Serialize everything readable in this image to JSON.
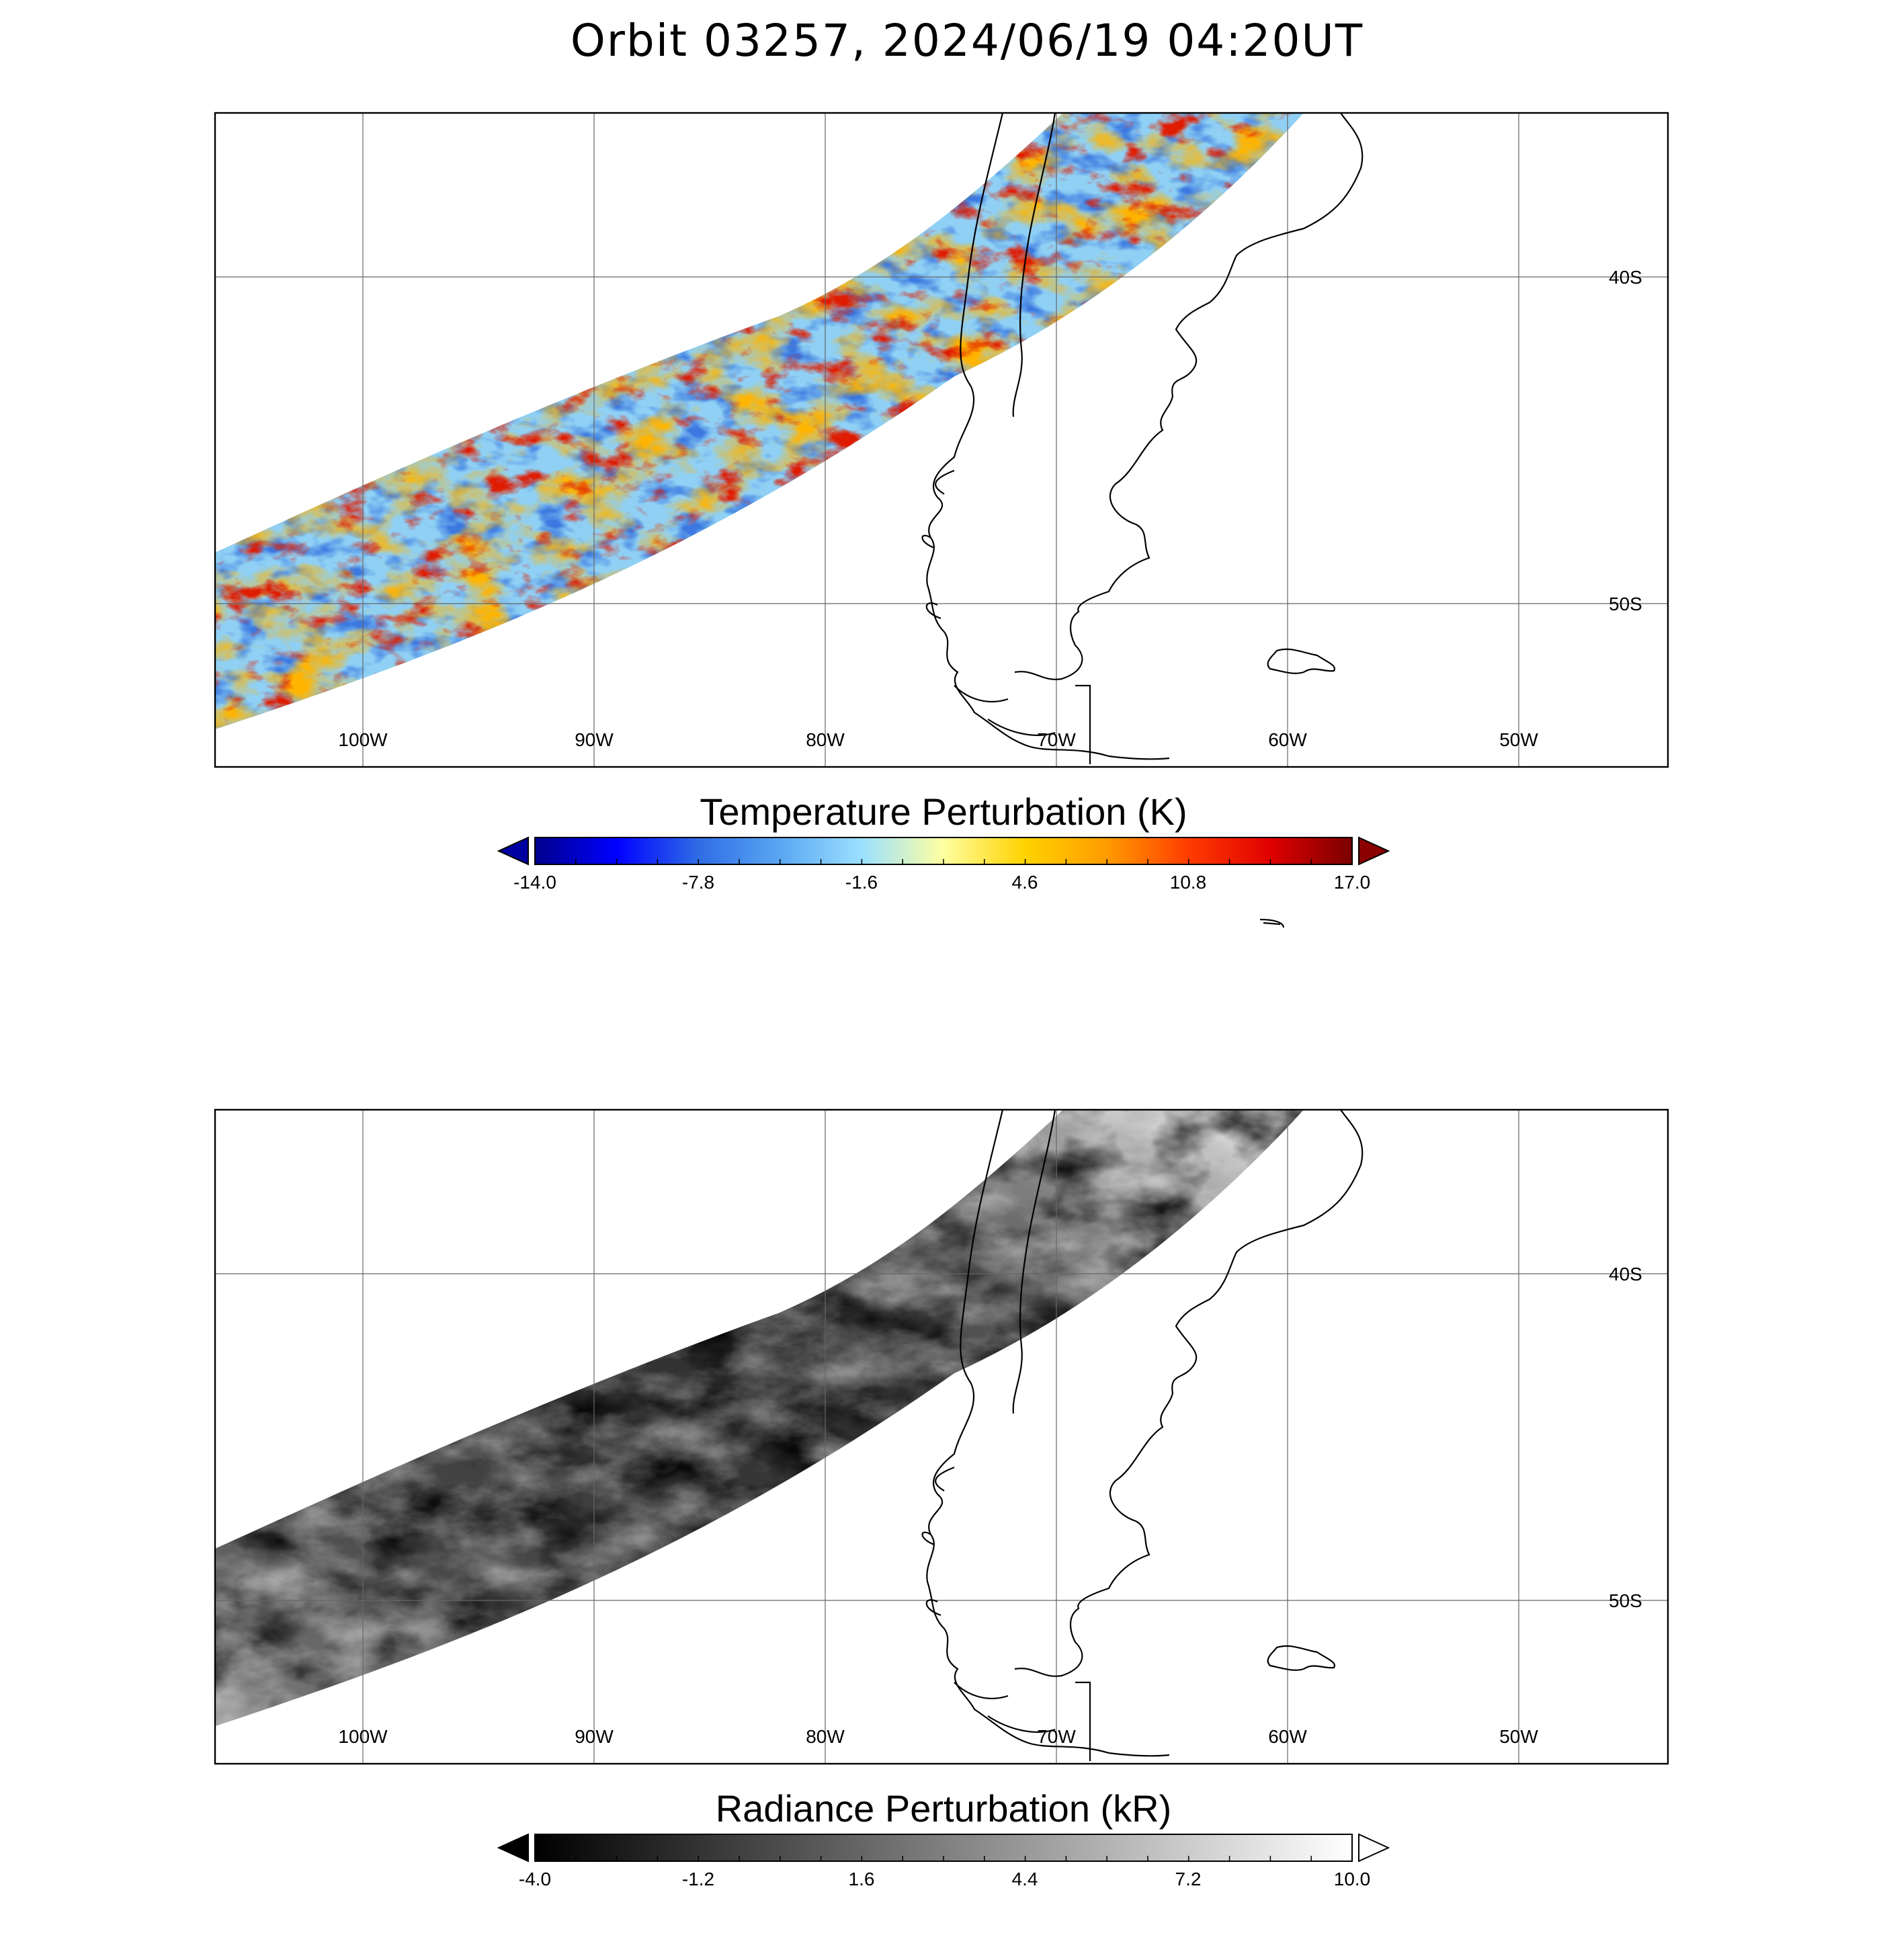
{
  "title": "Orbit 03257, 2024/06/19 04:20UT",
  "colors": {
    "temperature_colormap": [
      "#00008c",
      "#0000ff",
      "#2f6ce6",
      "#5aa7f2",
      "#9be0ff",
      "#ffffa0",
      "#ffd200",
      "#ff9b00",
      "#ff3c00",
      "#e00000",
      "#7a0000"
    ],
    "radiance_colormap": [
      "#000000",
      "#ffffff"
    ],
    "coastline": "#000000",
    "grid": "#555555"
  },
  "maps": [
    {
      "id": "temperature",
      "longitude_ticks": [
        "100W",
        "90W",
        "80W",
        "70W",
        "60W",
        "50W"
      ],
      "latitude_ticks": [
        "40S",
        "50S"
      ],
      "colorbar": {
        "label": "Temperature Perturbation (K)",
        "tick_labels": [
          "-14.0",
          "-7.8",
          "-1.6",
          "4.6",
          "10.8",
          "17.0"
        ],
        "min": -14.0,
        "max": 17.0,
        "extend_low_color": "#0000a0",
        "extend_high_color": "#8b0000"
      }
    },
    {
      "id": "radiance",
      "longitude_ticks": [
        "100W",
        "90W",
        "80W",
        "70W",
        "60W",
        "50W"
      ],
      "latitude_ticks": [
        "40S",
        "50S"
      ],
      "colorbar": {
        "label": "Radiance Perturbation (kR)",
        "tick_labels": [
          "-4.0",
          "-1.2",
          "1.6",
          "4.4",
          "7.2",
          "10.0"
        ],
        "min": -4.0,
        "max": 10.0,
        "extend_low_color": "#000000",
        "extend_high_color": "#ffffff"
      }
    }
  ]
}
